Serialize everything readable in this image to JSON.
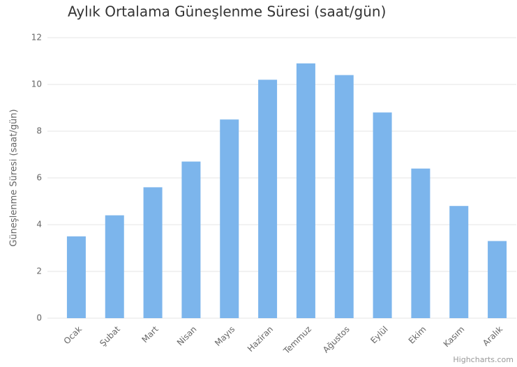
{
  "chart_data": {
    "type": "bar",
    "title": "Aylık Ortalama Güneşlenme Süresi (saat/gün)",
    "y_label": "Güneşlenme Süresi (saat/gün)",
    "categories": [
      "Ocak",
      "Şubat",
      "Mart",
      "Nisan",
      "Mayıs",
      "Haziran",
      "Temmuz",
      "Ağustos",
      "Eylül",
      "Ekim",
      "Kasım",
      "Aralık"
    ],
    "values": [
      3.5,
      4.4,
      5.6,
      6.7,
      8.5,
      10.2,
      10.9,
      10.4,
      8.8,
      6.4,
      4.8,
      3.3
    ],
    "color": "#7cb5ec",
    "ylim": [
      0,
      12
    ],
    "yticks": [
      0,
      2,
      4,
      6,
      8,
      10,
      12
    ],
    "grid": true,
    "credits": "Highcharts.com"
  }
}
